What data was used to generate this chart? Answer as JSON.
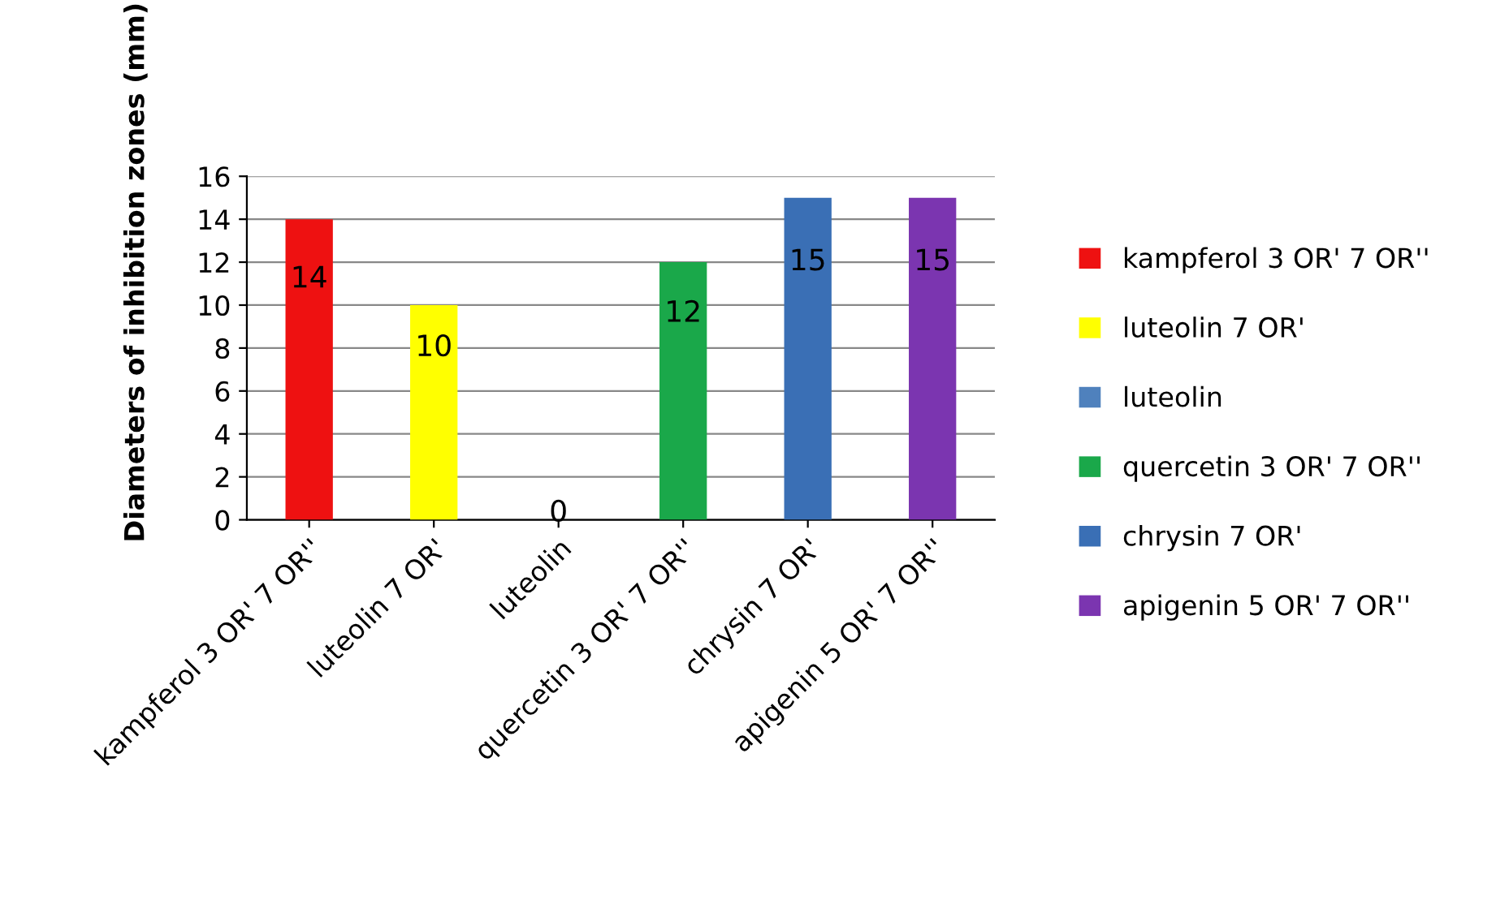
{
  "chart_data": {
    "type": "bar",
    "ylabel": "Diameters of inhibition zones (mm)",
    "stacked": true,
    "categories": [
      "kampferol 3 OR' 7 OR''",
      "luteolin 7 OR'",
      "luteolin",
      "quercetin 3 OR' 7 OR''",
      "chrysin 7 OR'",
      "apigenin 5 OR' 7 OR''"
    ],
    "series": [
      {
        "name": "kampferol 3 OR' 7 OR''",
        "color": "#ee1111",
        "values": [
          14,
          null,
          null,
          null,
          null,
          null
        ]
      },
      {
        "name": "luteolin 7 OR'",
        "color": "#ffff00",
        "values": [
          null,
          10,
          null,
          null,
          null,
          null
        ]
      },
      {
        "name": "luteolin",
        "color": "#4f81bd",
        "values": [
          null,
          null,
          0,
          null,
          null,
          null
        ]
      },
      {
        "name": "quercetin 3 OR' 7 OR''",
        "color": "#1aa84a",
        "values": [
          null,
          null,
          null,
          12,
          null,
          null
        ]
      },
      {
        "name": "chrysin 7 OR'",
        "color": "#3a6fb5",
        "values": [
          null,
          null,
          null,
          null,
          15,
          null
        ]
      },
      {
        "name": "apigenin 5 OR' 7 OR''",
        "color": "#7b35b0",
        "values": [
          null,
          null,
          null,
          null,
          null,
          15
        ]
      }
    ],
    "ylim": [
      0,
      16
    ],
    "yticks": [
      0,
      2,
      4,
      6,
      8,
      10,
      12,
      14,
      16
    ],
    "grid": "y",
    "legend": "right",
    "data_labels": true
  }
}
